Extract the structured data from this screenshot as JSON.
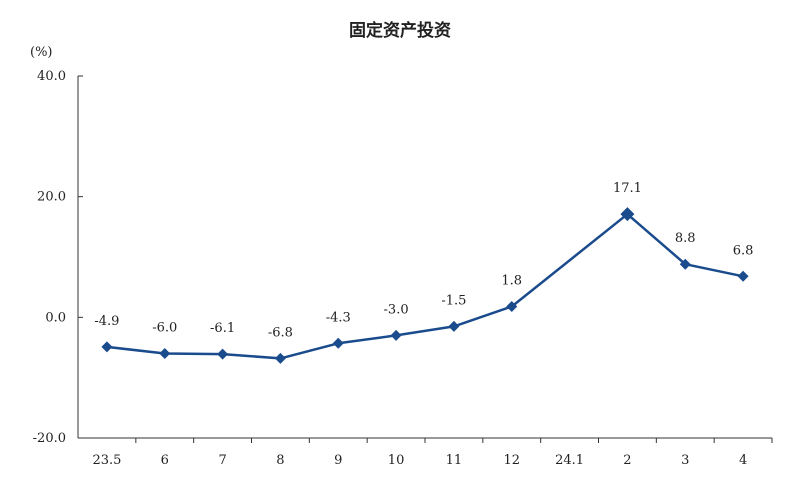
{
  "chart_data": {
    "type": "line",
    "title": "固定资产投资",
    "unit_label": "(%)",
    "categories": [
      "23.5",
      "6",
      "7",
      "8",
      "9",
      "10",
      "11",
      "12",
      "24.1",
      "2",
      "3",
      "4"
    ],
    "series": [
      {
        "values": [
          -4.9,
          -6.0,
          -6.1,
          -6.8,
          -4.3,
          -3.0,
          -1.5,
          1.8,
          null,
          17.1,
          8.8,
          6.8
        ],
        "labels": [
          "-4.9",
          "-6.0",
          "-6.1",
          "-6.8",
          "-4.3",
          "-3.0",
          "-1.5",
          "1.8",
          "",
          "17.1",
          "8.8",
          "6.8"
        ],
        "color": "#1a4b8c"
      }
    ],
    "yticks": [
      "40.0",
      "20.0",
      "0.0",
      "-20.0"
    ],
    "ylim": [
      -20,
      40
    ],
    "grid": false,
    "legend": "none"
  }
}
